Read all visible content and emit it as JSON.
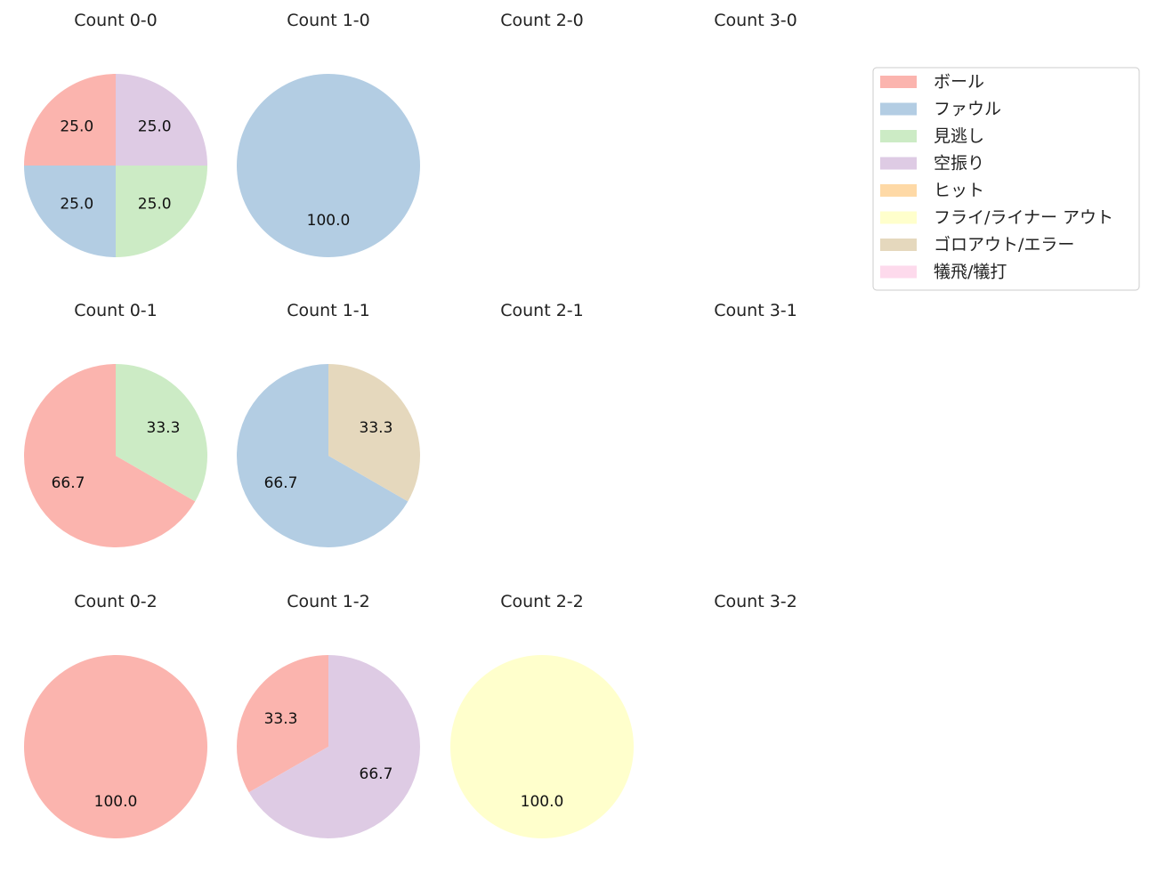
{
  "chart_data": {
    "type": "pie",
    "legend": {
      "placement": "top-right",
      "entries": [
        {
          "label": "ボール",
          "color": "#fbb4ae"
        },
        {
          "label": "ファウル",
          "color": "#b3cde3"
        },
        {
          "label": "見逃し",
          "color": "#ccebc5"
        },
        {
          "label": "空振り",
          "color": "#decbe4"
        },
        {
          "label": "ヒット",
          "color": "#fed9a6"
        },
        {
          "label": "フライ/ライナー アウト",
          "color": "#ffffcc"
        },
        {
          "label": "ゴロアウト/エラー",
          "color": "#e5d8bd"
        },
        {
          "label": "犠飛/犠打",
          "color": "#fddaec"
        }
      ]
    },
    "panels": [
      {
        "title": "Count 0-0",
        "row": 0,
        "col": 0,
        "slices": [
          {
            "category": "ボール",
            "value": 25.0,
            "label": "25.0"
          },
          {
            "category": "ファウル",
            "value": 25.0,
            "label": "25.0"
          },
          {
            "category": "見逃し",
            "value": 25.0,
            "label": "25.0"
          },
          {
            "category": "空振り",
            "value": 25.0,
            "label": "25.0"
          }
        ]
      },
      {
        "title": "Count 1-0",
        "row": 0,
        "col": 1,
        "slices": [
          {
            "category": "ファウル",
            "value": 100.0,
            "label": "100.0"
          }
        ]
      },
      {
        "title": "Count 2-0",
        "row": 0,
        "col": 2,
        "slices": []
      },
      {
        "title": "Count 3-0",
        "row": 0,
        "col": 3,
        "slices": []
      },
      {
        "title": "Count 0-1",
        "row": 1,
        "col": 0,
        "slices": [
          {
            "category": "ボール",
            "value": 66.7,
            "label": "66.7"
          },
          {
            "category": "見逃し",
            "value": 33.3,
            "label": "33.3"
          }
        ]
      },
      {
        "title": "Count 1-1",
        "row": 1,
        "col": 1,
        "slices": [
          {
            "category": "ファウル",
            "value": 66.7,
            "label": "66.7"
          },
          {
            "category": "ゴロアウト/エラー",
            "value": 33.3,
            "label": "33.3"
          }
        ]
      },
      {
        "title": "Count 2-1",
        "row": 1,
        "col": 2,
        "slices": []
      },
      {
        "title": "Count 3-1",
        "row": 1,
        "col": 3,
        "slices": []
      },
      {
        "title": "Count 0-2",
        "row": 2,
        "col": 0,
        "slices": [
          {
            "category": "ボール",
            "value": 100.0,
            "label": "100.0"
          }
        ]
      },
      {
        "title": "Count 1-2",
        "row": 2,
        "col": 1,
        "slices": [
          {
            "category": "ボール",
            "value": 33.3,
            "label": "33.3"
          },
          {
            "category": "空振り",
            "value": 66.7,
            "label": "66.7"
          }
        ]
      },
      {
        "title": "Count 2-2",
        "row": 2,
        "col": 2,
        "slices": [
          {
            "category": "フライ/ライナー アウト",
            "value": 100.0,
            "label": "100.0"
          }
        ]
      },
      {
        "title": "Count 3-2",
        "row": 2,
        "col": 3,
        "slices": []
      }
    ]
  }
}
